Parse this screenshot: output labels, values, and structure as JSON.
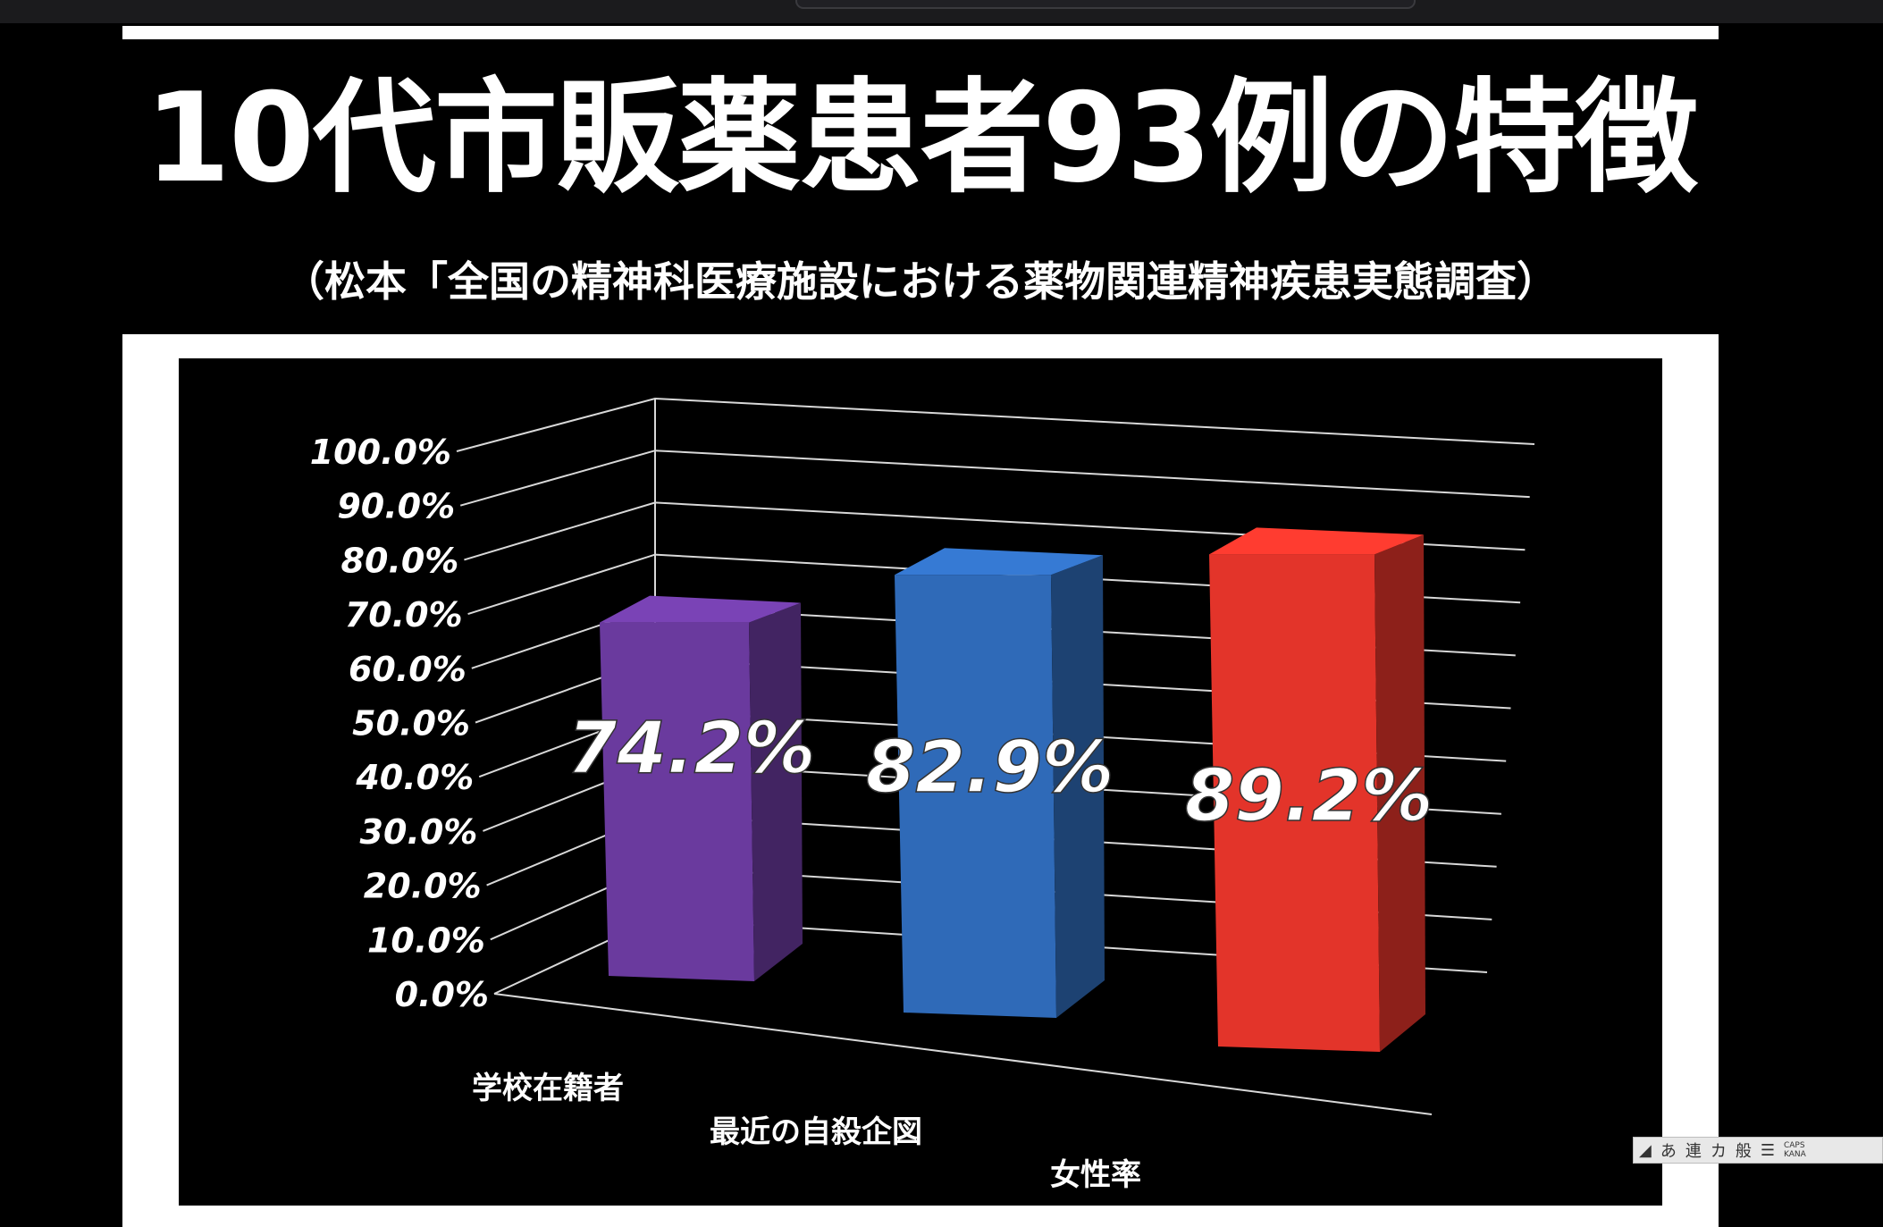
{
  "title": "10代市販薬患者93例の特徴",
  "subtitle": "（松本「全国の精神科医療施設における薬物関連精神疾患実態調査）",
  "chart_data": {
    "type": "bar",
    "style": "3d-column",
    "categories": [
      "学校在籍者",
      "最近の自殺企図",
      "女性率"
    ],
    "values": [
      74.2,
      82.9,
      89.2
    ],
    "data_labels": [
      "74.2%",
      "82.9%",
      "89.2%"
    ],
    "colors": [
      "#6a3a9e",
      "#2f6ab8",
      "#e3342a"
    ],
    "y_ticks": [
      "0.0%",
      "10.0%",
      "20.0%",
      "30.0%",
      "40.0%",
      "50.0%",
      "60.0%",
      "70.0%",
      "80.0%",
      "90.0%",
      "100.0%"
    ],
    "ylim": [
      0,
      100
    ],
    "grid": true,
    "legend": "none"
  },
  "ime_bar": {
    "mode": "あ",
    "items": [
      "連",
      "カ",
      "般"
    ],
    "caps": "CAPS",
    "kana": "KANA"
  }
}
